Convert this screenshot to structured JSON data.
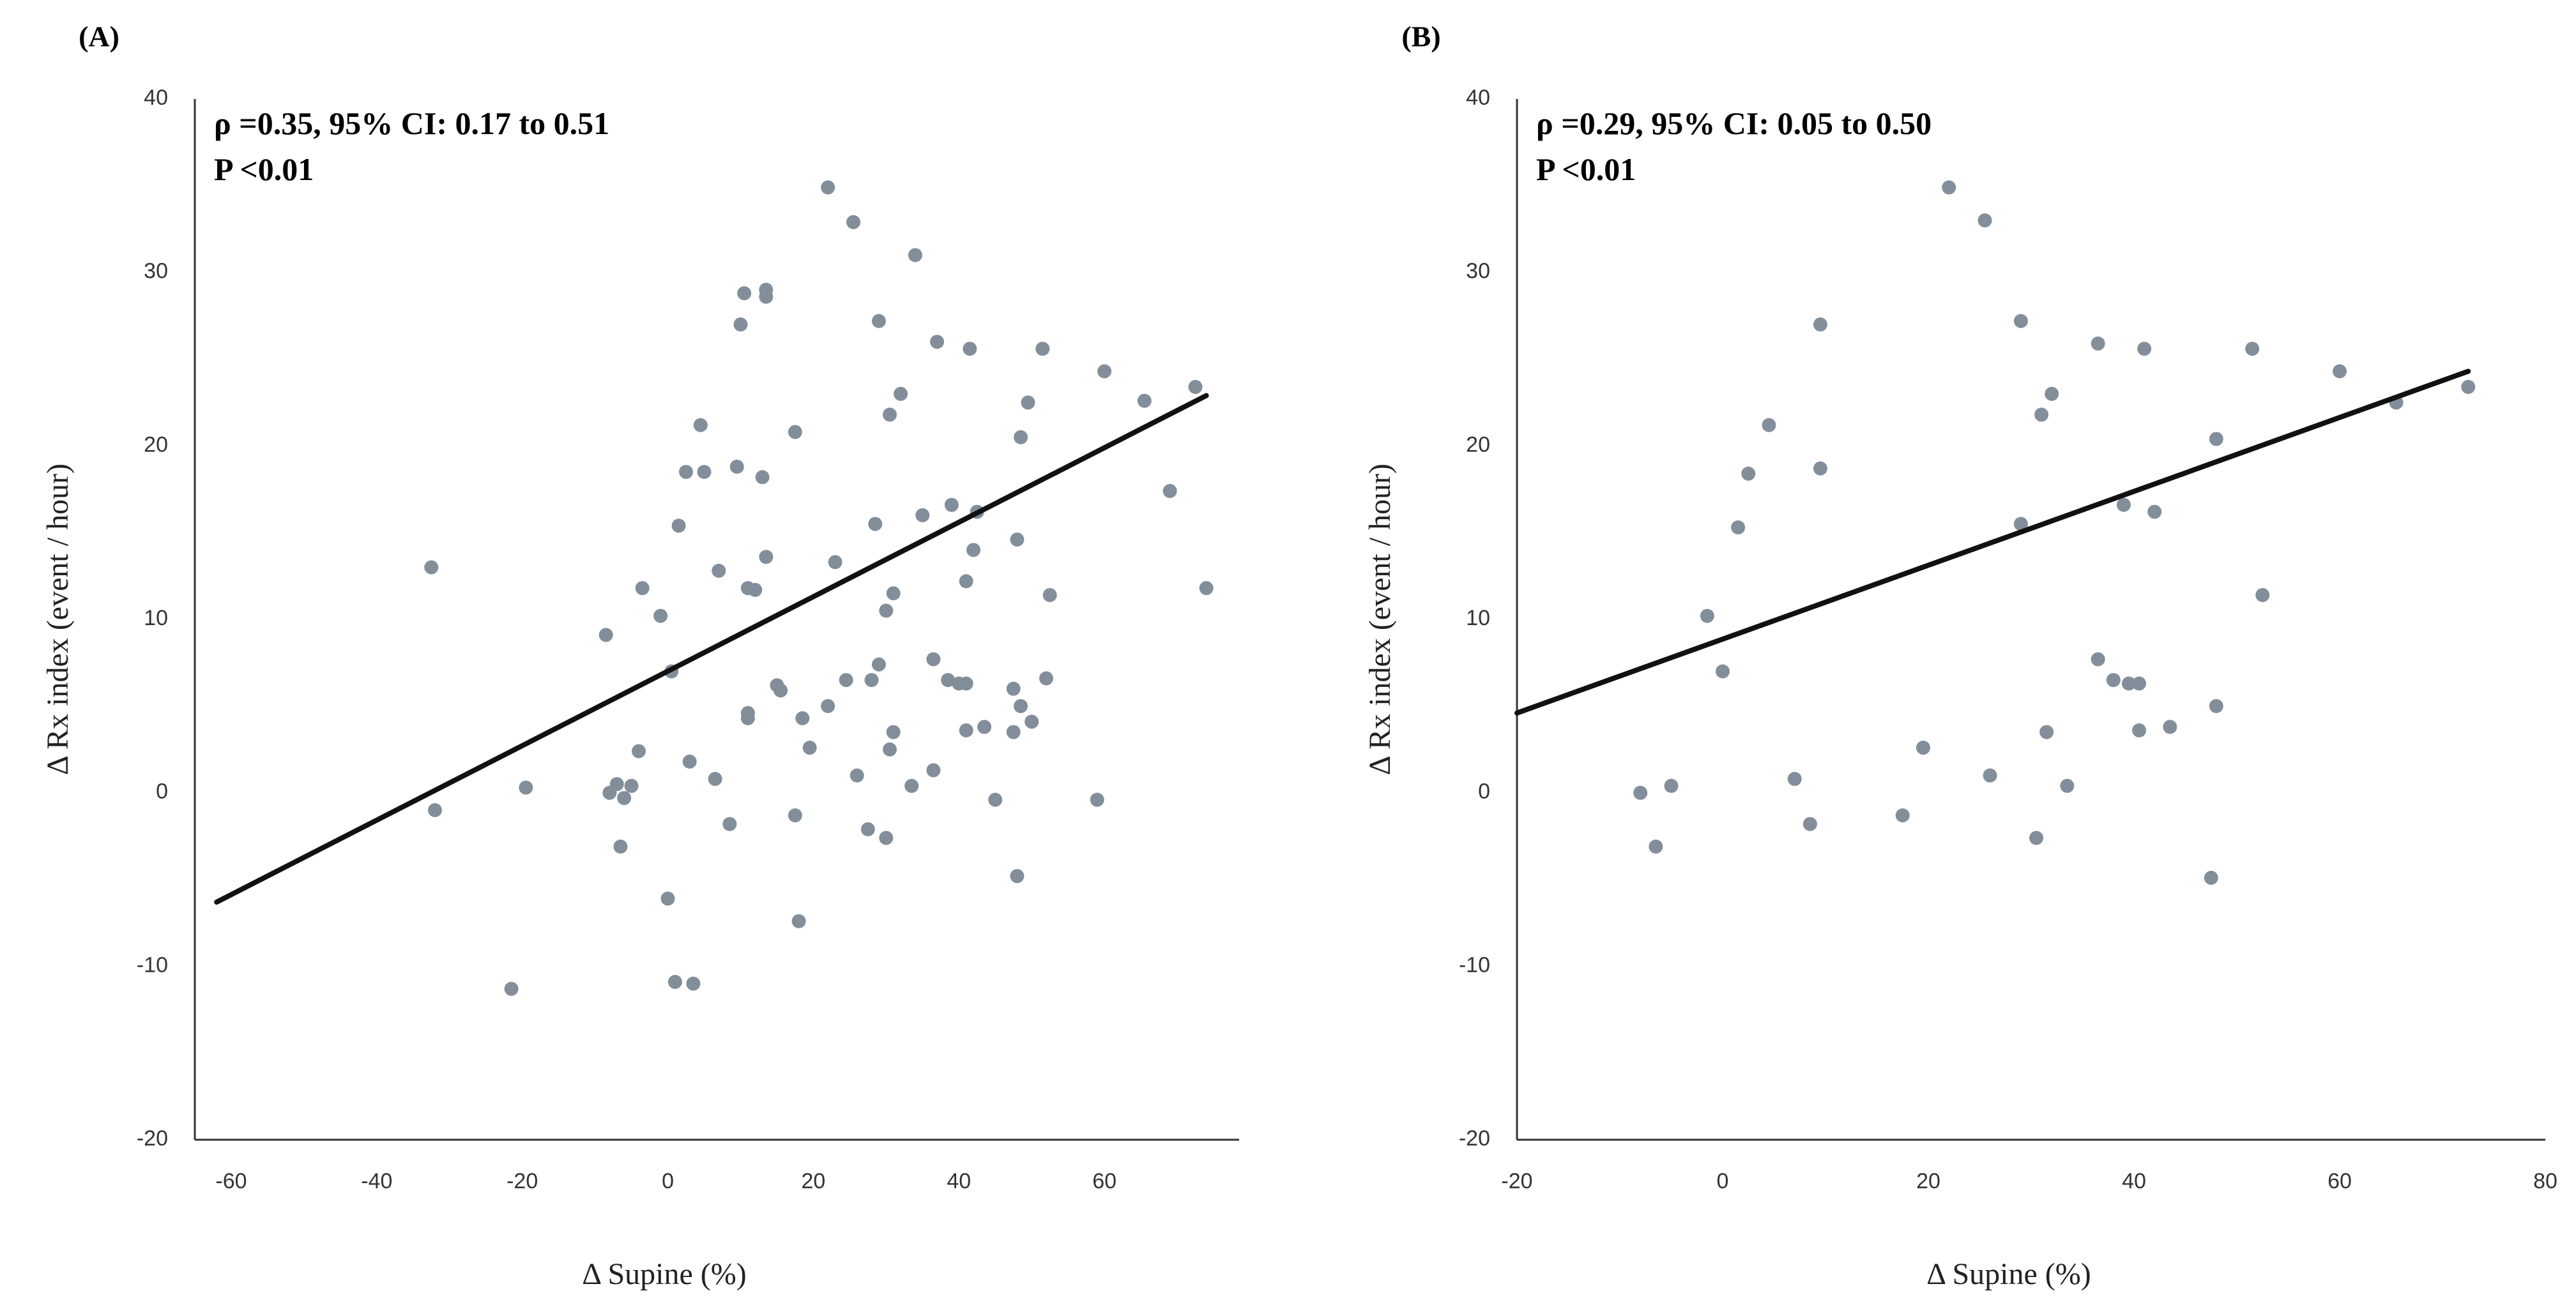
{
  "chart_data": [
    {
      "panel": "(A)",
      "type": "scatter",
      "title": "",
      "xlabel": "Δ Supine (%)",
      "ylabel": "Δ Rx index (event / hour)",
      "xlim": [
        -65,
        75
      ],
      "ylim": [
        -20,
        40
      ],
      "xticks": [
        "-60",
        "-40",
        "-20",
        "0",
        "20",
        "40",
        "60"
      ],
      "yticks": [
        "-20",
        "-10",
        "0",
        "10",
        "20",
        "30",
        "40"
      ],
      "annotation_line1": "ρ =0.35, 95% CI: 0.17 to 0.51",
      "annotation_line2": "P <0.01",
      "fit_line": {
        "x": [
          -62,
          74
        ],
        "y": [
          -6.3,
          22.9
        ]
      },
      "grid": false,
      "point_color": "#838e9b",
      "line_color": "#111111",
      "points": [
        [
          -32.5,
          13.0
        ],
        [
          -32.0,
          -1.0
        ],
        [
          -21.5,
          -11.3
        ],
        [
          -19.5,
          0.3
        ],
        [
          -8.5,
          9.1
        ],
        [
          -8.0,
          0.0
        ],
        [
          -7.0,
          0.5
        ],
        [
          -6.5,
          -3.1
        ],
        [
          -6.0,
          -0.3
        ],
        [
          -5.0,
          0.4
        ],
        [
          -4.0,
          2.4
        ],
        [
          -3.5,
          11.8
        ],
        [
          -1.0,
          10.2
        ],
        [
          0.0,
          -6.1
        ],
        [
          0.5,
          7.0
        ],
        [
          1.0,
          -10.9
        ],
        [
          1.5,
          15.4
        ],
        [
          2.5,
          18.5
        ],
        [
          3.0,
          1.8
        ],
        [
          3.5,
          -11.0
        ],
        [
          4.5,
          21.2
        ],
        [
          5.0,
          18.5
        ],
        [
          6.5,
          0.8
        ],
        [
          7.0,
          12.8
        ],
        [
          8.5,
          -1.8
        ],
        [
          9.5,
          18.8
        ],
        [
          10.0,
          27.0
        ],
        [
          10.5,
          28.8
        ],
        [
          11.0,
          4.6
        ],
        [
          11.0,
          4.3
        ],
        [
          11.0,
          11.8
        ],
        [
          12.0,
          11.7
        ],
        [
          13.0,
          18.2
        ],
        [
          13.5,
          13.6
        ],
        [
          13.5,
          29.0
        ],
        [
          13.5,
          28.6
        ],
        [
          15.0,
          6.2
        ],
        [
          15.5,
          5.9
        ],
        [
          17.5,
          20.8
        ],
        [
          17.5,
          -1.3
        ],
        [
          18.0,
          -7.4
        ],
        [
          18.5,
          4.3
        ],
        [
          19.5,
          2.6
        ],
        [
          22.0,
          5.0
        ],
        [
          22.0,
          34.9
        ],
        [
          23.0,
          13.3
        ],
        [
          24.5,
          6.5
        ],
        [
          25.5,
          32.9
        ],
        [
          26.0,
          1.0
        ],
        [
          27.5,
          -2.1
        ],
        [
          28.0,
          6.5
        ],
        [
          28.5,
          15.5
        ],
        [
          29.0,
          27.2
        ],
        [
          29.0,
          7.4
        ],
        [
          30.0,
          10.5
        ],
        [
          30.0,
          -2.6
        ],
        [
          30.5,
          21.8
        ],
        [
          30.5,
          2.5
        ],
        [
          31.0,
          3.5
        ],
        [
          31.0,
          11.5
        ],
        [
          32.0,
          23.0
        ],
        [
          33.5,
          0.4
        ],
        [
          34.0,
          31.0
        ],
        [
          35.0,
          16.0
        ],
        [
          36.5,
          1.3
        ],
        [
          36.5,
          7.7
        ],
        [
          37.0,
          26.0
        ],
        [
          38.5,
          6.5
        ],
        [
          39.0,
          16.6
        ],
        [
          40.0,
          6.3
        ],
        [
          41.0,
          6.3
        ],
        [
          41.0,
          3.6
        ],
        [
          41.0,
          12.2
        ],
        [
          41.5,
          25.6
        ],
        [
          42.0,
          14.0
        ],
        [
          42.5,
          16.2
        ],
        [
          43.5,
          3.8
        ],
        [
          45.0,
          -0.4
        ],
        [
          47.5,
          3.5
        ],
        [
          47.5,
          6.0
        ],
        [
          48.0,
          -4.8
        ],
        [
          48.0,
          14.6
        ],
        [
          48.5,
          5.0
        ],
        [
          48.5,
          20.5
        ],
        [
          49.5,
          22.5
        ],
        [
          50.0,
          4.1
        ],
        [
          51.5,
          25.6
        ],
        [
          52.0,
          6.6
        ],
        [
          52.5,
          11.4
        ],
        [
          59.0,
          -0.4
        ],
        [
          60.0,
          24.3
        ],
        [
          65.5,
          22.6
        ],
        [
          69.0,
          17.4
        ],
        [
          72.5,
          23.4
        ],
        [
          74.0,
          11.8
        ]
      ]
    },
    {
      "panel": "(B)",
      "type": "scatter",
      "title": "",
      "xlabel": "Δ Supine (%)",
      "ylabel": "Δ Rx index (event / hour)",
      "xlim": [
        -20,
        80
      ],
      "ylim": [
        -20,
        40
      ],
      "xticks": [
        "-20",
        "0",
        "20",
        "40",
        "60",
        "80"
      ],
      "yticks": [
        "-20",
        "-10",
        "0",
        "10",
        "20",
        "30",
        "40"
      ],
      "annotation_line1": "ρ =0.29, 95% CI: 0.05 to 0.50",
      "annotation_line2": "P <0.01",
      "fit_line": {
        "x": [
          -20,
          72.5
        ],
        "y": [
          4.6,
          24.3
        ]
      },
      "grid": false,
      "point_color": "#838e9b",
      "line_color": "#111111",
      "points": [
        [
          -8.0,
          0.0
        ],
        [
          -6.5,
          -3.1
        ],
        [
          -5.0,
          0.4
        ],
        [
          -1.5,
          10.2
        ],
        [
          0.0,
          7.0
        ],
        [
          1.5,
          15.3
        ],
        [
          2.5,
          18.4
        ],
        [
          4.5,
          21.2
        ],
        [
          7.0,
          0.8
        ],
        [
          8.5,
          -1.8
        ],
        [
          9.5,
          27.0
        ],
        [
          9.5,
          18.7
        ],
        [
          17.5,
          -1.3
        ],
        [
          19.5,
          2.6
        ],
        [
          22.0,
          34.9
        ],
        [
          25.5,
          33.0
        ],
        [
          26.0,
          1.0
        ],
        [
          29.0,
          27.2
        ],
        [
          29.0,
          15.5
        ],
        [
          30.5,
          -2.6
        ],
        [
          31.0,
          21.8
        ],
        [
          31.5,
          3.5
        ],
        [
          32.0,
          23.0
        ],
        [
          33.5,
          0.4
        ],
        [
          36.5,
          7.7
        ],
        [
          36.5,
          25.9
        ],
        [
          38.0,
          6.5
        ],
        [
          39.0,
          16.6
        ],
        [
          39.5,
          6.3
        ],
        [
          40.5,
          6.3
        ],
        [
          40.5,
          3.6
        ],
        [
          41.0,
          25.6
        ],
        [
          42.0,
          16.2
        ],
        [
          43.5,
          3.8
        ],
        [
          47.5,
          -4.9
        ],
        [
          48.0,
          5.0
        ],
        [
          48.0,
          20.4
        ],
        [
          51.5,
          25.6
        ],
        [
          52.5,
          11.4
        ],
        [
          60.0,
          24.3
        ],
        [
          65.5,
          22.5
        ],
        [
          72.5,
          23.4
        ]
      ]
    }
  ]
}
